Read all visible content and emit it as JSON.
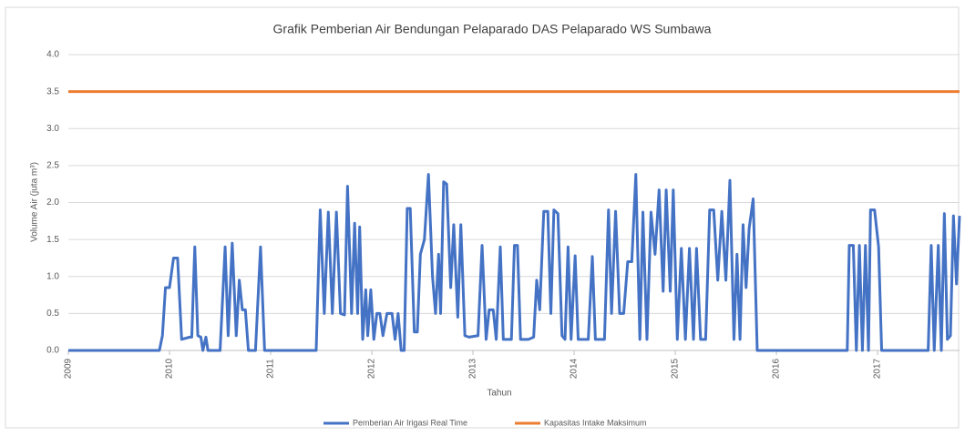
{
  "chart_data": {
    "type": "line",
    "title": "Grafik Pemberian Air Bendungan Pelaparado DAS Pelaparado WS Sumbawa",
    "xlabel": "Tahun",
    "ylabel": "Volume Air (juta m³)",
    "xlim": [
      2009,
      2017.81
    ],
    "xticks": [
      2009,
      2010,
      2011,
      2012,
      2013,
      2014,
      2015,
      2016,
      2017
    ],
    "ylim": [
      0,
      4
    ],
    "yticks": [
      {
        "value": 0,
        "label": "0.0"
      },
      0.5,
      {
        "value": 1,
        "label": "1.0"
      },
      1.5,
      {
        "value": 2,
        "label": "2.0"
      },
      2.5,
      {
        "value": 3,
        "label": "3.0"
      },
      3.5,
      {
        "value": 4,
        "label": "4.0"
      }
    ],
    "grid": true,
    "legend": "bottom",
    "series": [
      {
        "name": "Pemberian Air Irigasi Real Time",
        "color": "#4472c4",
        "x": [
          2009.0,
          2009.9,
          2009.93,
          2009.96,
          2010.0,
          2010.04,
          2010.08,
          2010.12,
          2010.2,
          2010.22,
          2010.25,
          2010.28,
          2010.31,
          2010.33,
          2010.36,
          2010.38,
          2010.5,
          2010.55,
          2010.58,
          2010.62,
          2010.66,
          2010.69,
          2010.72,
          2010.75,
          2010.78,
          2010.85,
          2010.9,
          2010.94,
          2011.45,
          2011.49,
          2011.53,
          2011.57,
          2011.61,
          2011.65,
          2011.69,
          2011.73,
          2011.76,
          2011.8,
          2011.83,
          2011.86,
          2011.88,
          2011.91,
          2011.94,
          2011.96,
          2011.99,
          2012.02,
          2012.05,
          2012.08,
          2012.11,
          2012.15,
          2012.2,
          2012.23,
          2012.26,
          2012.29,
          2012.32,
          2012.35,
          2012.38,
          2012.42,
          2012.45,
          2012.48,
          2012.52,
          2012.56,
          2012.6,
          2012.63,
          2012.66,
          2012.68,
          2012.71,
          2012.74,
          2012.78,
          2012.81,
          2012.85,
          2012.88,
          2012.92,
          2012.96,
          2013.05,
          2013.09,
          2013.13,
          2013.16,
          2013.2,
          2013.23,
          2013.27,
          2013.3,
          2013.38,
          2013.41,
          2013.44,
          2013.47,
          2013.55,
          2013.6,
          2013.63,
          2013.66,
          2013.7,
          2013.74,
          2013.77,
          2013.8,
          2013.84,
          2013.88,
          2013.91,
          2013.94,
          2013.97,
          2014.01,
          2014.04,
          2014.14,
          2014.18,
          2014.21,
          2014.3,
          2014.34,
          2014.37,
          2014.41,
          2014.45,
          2014.49,
          2014.53,
          2014.57,
          2014.61,
          2014.65,
          2014.68,
          2014.72,
          2014.76,
          2014.8,
          2014.84,
          2014.88,
          2014.91,
          2014.95,
          2014.98,
          2015.02,
          2015.06,
          2015.1,
          2015.14,
          2015.18,
          2015.21,
          2015.25,
          2015.3,
          2015.34,
          2015.38,
          2015.42,
          2015.46,
          2015.5,
          2015.54,
          2015.58,
          2015.61,
          2015.64,
          2015.67,
          2015.7,
          2015.73,
          2015.77,
          2015.81,
          2016.7,
          2016.72,
          2016.76,
          2016.79,
          2016.82,
          2016.85,
          2016.88,
          2016.91,
          2016.93,
          2016.97,
          2017.01,
          2017.04,
          2017.5,
          2017.53,
          2017.56,
          2017.6,
          2017.63,
          2017.66,
          2017.69,
          2017.72,
          2017.75,
          2017.78,
          2017.81
        ],
        "values": [
          0,
          0,
          0.2,
          0.85,
          0.85,
          1.25,
          1.25,
          0.15,
          0.18,
          0.18,
          1.4,
          0.2,
          0.18,
          0,
          0.18,
          0,
          0,
          1.4,
          0.2,
          1.45,
          0.2,
          0.95,
          0.55,
          0.55,
          0,
          0,
          1.4,
          0,
          0,
          1.9,
          0.5,
          1.87,
          0.5,
          1.87,
          0.5,
          0.48,
          2.22,
          0.5,
          1.72,
          0.5,
          1.67,
          0.15,
          0.82,
          0.2,
          0.82,
          0.15,
          0.5,
          0.5,
          0.2,
          0.5,
          0.5,
          0.15,
          0.5,
          0,
          0,
          1.92,
          1.92,
          0.25,
          0.25,
          1.3,
          1.5,
          2.38,
          1.0,
          0.5,
          1.3,
          0.5,
          2.28,
          2.25,
          0.85,
          1.7,
          0.45,
          1.7,
          0.2,
          0.18,
          0.2,
          1.42,
          0.15,
          0.55,
          0.55,
          0.15,
          1.4,
          0.15,
          0.15,
          1.42,
          1.42,
          0.15,
          0.15,
          0.18,
          0.95,
          0.55,
          1.88,
          1.88,
          0.5,
          1.9,
          1.85,
          0.2,
          0.15,
          1.4,
          0.15,
          1.28,
          0.15,
          0.15,
          1.27,
          0.15,
          0.15,
          1.9,
          0.5,
          1.88,
          0.5,
          0.5,
          1.2,
          1.2,
          2.38,
          0.15,
          1.87,
          0.15,
          1.87,
          1.3,
          2.17,
          0.8,
          2.17,
          0.8,
          2.17,
          0.15,
          1.38,
          0.15,
          1.38,
          0.15,
          1.38,
          0.15,
          0.15,
          1.9,
          1.9,
          0.95,
          1.88,
          0.95,
          2.3,
          0.15,
          1.3,
          0.15,
          1.7,
          0.85,
          1.65,
          2.05,
          0,
          0,
          1.42,
          1.42,
          0,
          1.42,
          0,
          1.42,
          0,
          1.9,
          1.9,
          1.4,
          0,
          0,
          1.42,
          0,
          1.42,
          0,
          1.85,
          0.15,
          0.2,
          1.82,
          0.9,
          1.82
        ]
      },
      {
        "name": "Kapasitas Intake Maksimum",
        "color": "#ed7d31",
        "x": [
          2009,
          2017.81
        ],
        "values": [
          3.5,
          3.5
        ]
      }
    ]
  }
}
